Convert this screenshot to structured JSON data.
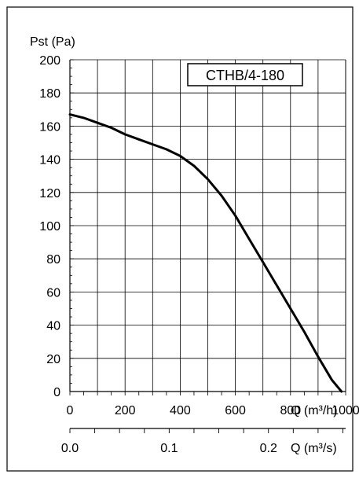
{
  "chart_data": {
    "type": "line",
    "title": "",
    "legend_label": "CTHB/4-180",
    "ylabel": "Pst (Pa)",
    "xlabel": "Q (m³/h)",
    "x2label": "Q (m³/s)",
    "xlim": [
      0,
      1000
    ],
    "ylim": [
      0,
      200
    ],
    "x_ticks": [
      "0",
      "200",
      "400",
      "600",
      "800",
      "1000"
    ],
    "y_ticks": [
      "0",
      "20",
      "40",
      "60",
      "80",
      "100",
      "120",
      "140",
      "160",
      "180",
      "200"
    ],
    "x2_ticks": [
      "0.0",
      "0.1",
      "0.2"
    ],
    "x2_tick_values_m3h": [
      0,
      360,
      720
    ],
    "grid": true,
    "series": [
      {
        "name": "CTHB/4-180",
        "color": "#000000",
        "x": [
          0,
          50,
          100,
          150,
          200,
          250,
          300,
          350,
          400,
          450,
          500,
          550,
          600,
          650,
          700,
          750,
          800,
          850,
          900,
          950,
          985
        ],
        "y": [
          167,
          165,
          162,
          159,
          155,
          152,
          149,
          146,
          142,
          136,
          128,
          118,
          106,
          92,
          78,
          64,
          50,
          36,
          21,
          7,
          0
        ]
      }
    ]
  }
}
